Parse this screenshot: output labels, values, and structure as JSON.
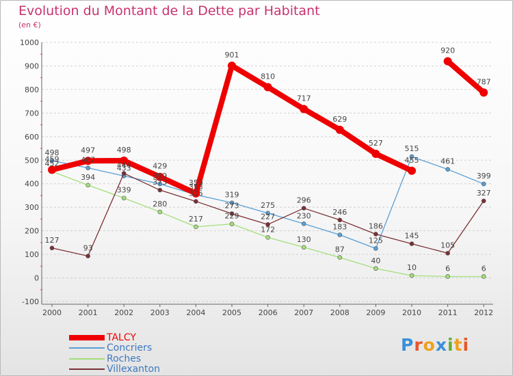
{
  "header": {
    "title": "Evolution du Montant de la Dette par Habitant",
    "subtitle": "(en €)"
  },
  "logo": {
    "text": "Proxiti",
    "letter_colors": [
      "#3a8fd8",
      "#e8562a",
      "#f0a020",
      "#3a8fd8",
      "#60b030",
      "#f0a020",
      "#e8562a"
    ]
  },
  "chart_data": {
    "type": "line",
    "title": "Evolution du Montant de la Dette par Habitant",
    "subtitle": "(en €)",
    "x": [
      "2000",
      "2001",
      "2002",
      "2003",
      "2004",
      "2005",
      "2006",
      "2007",
      "2008",
      "2009",
      "2010",
      "2011",
      "2012"
    ],
    "ylim": [
      -100,
      1000
    ],
    "yticks": [
      "-100",
      "0",
      "100",
      "200",
      "300",
      "400",
      "500",
      "600",
      "700",
      "800",
      "900",
      "1000"
    ],
    "grid": "horizontal dashed",
    "legend_position": "bottom-left",
    "series": [
      {
        "name": "TALCY",
        "color": "#ee0000",
        "values": [
          459,
          497,
          498,
          429,
          359,
          901,
          810,
          717,
          629,
          527,
          455,
          920,
          787
        ],
        "labels": [
          "459",
          "497",
          "498",
          "429",
          "359",
          "901",
          "810",
          "717",
          "629",
          "527",
          "455",
          "920",
          "787"
        ]
      },
      {
        "name": "Concriers",
        "color": "#5a9fd4",
        "values": [
          498,
          467,
          433,
          399,
          353,
          319,
          275,
          230,
          183,
          125,
          515,
          461,
          399
        ],
        "labels": [
          "498",
          "467",
          "433",
          "399",
          "353",
          "319",
          "275",
          "230",
          "183",
          "125",
          "515",
          "461",
          "399"
        ]
      },
      {
        "name": "Roches",
        "color": "#a3de7a",
        "values": [
          452,
          394,
          339,
          280,
          217,
          229,
          172,
          130,
          87,
          40,
          10,
          6,
          6
        ],
        "labels": [
          "452",
          "394",
          "339",
          "280",
          "217",
          "229",
          "172",
          "130",
          "87",
          "40",
          "10",
          "6",
          "6"
        ]
      },
      {
        "name": "Villexanton",
        "color": "#7a2f35",
        "values": [
          127,
          93,
          444,
          373,
          325,
          273,
          227,
          296,
          246,
          186,
          145,
          105,
          327
        ],
        "labels": [
          "127",
          "93",
          "444",
          "373",
          "325",
          "273",
          "227",
          "296",
          "246",
          "186",
          "145",
          "105",
          "327"
        ]
      }
    ]
  }
}
